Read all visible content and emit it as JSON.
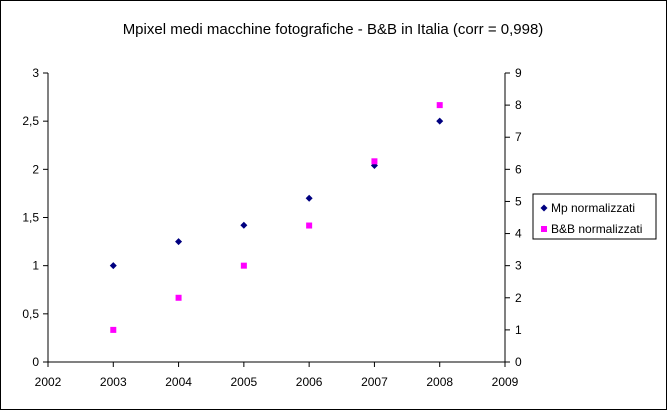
{
  "chart_data": {
    "type": "scatter",
    "title": "Mpixel medi macchine fotografiche - B&B in Italia (corr = 0,998)",
    "x_ticks": [
      "2002",
      "2003",
      "2004",
      "2005",
      "2006",
      "2007",
      "2008",
      "2009"
    ],
    "y_left_ticks": [
      "0",
      "0,5",
      "1",
      "1,5",
      "2",
      "2,5",
      "3"
    ],
    "y_right_ticks": [
      "0",
      "1",
      "2",
      "3",
      "4",
      "5",
      "6",
      "7",
      "8",
      "9"
    ],
    "xlim": [
      2002,
      2009
    ],
    "y_left_lim": [
      0,
      3
    ],
    "y_right_lim": [
      0,
      9
    ],
    "grid": false,
    "legend_position": "right",
    "series": [
      {
        "name": "Mp normalizzati",
        "axis": "left",
        "marker": "diamond",
        "color": "#000080",
        "points": [
          {
            "x": 2003,
            "y": 1.0
          },
          {
            "x": 2004,
            "y": 1.25
          },
          {
            "x": 2005,
            "y": 1.42
          },
          {
            "x": 2006,
            "y": 1.7
          },
          {
            "x": 2007,
            "y": 2.04
          },
          {
            "x": 2008,
            "y": 2.5
          }
        ]
      },
      {
        "name": "B&B normalizzati",
        "axis": "right",
        "marker": "square",
        "color": "#ff00ff",
        "points": [
          {
            "x": 2003,
            "y": 1.0
          },
          {
            "x": 2004,
            "y": 2.0
          },
          {
            "x": 2005,
            "y": 3.0
          },
          {
            "x": 2006,
            "y": 4.25
          },
          {
            "x": 2007,
            "y": 6.25
          },
          {
            "x": 2008,
            "y": 8.0
          }
        ]
      }
    ]
  }
}
